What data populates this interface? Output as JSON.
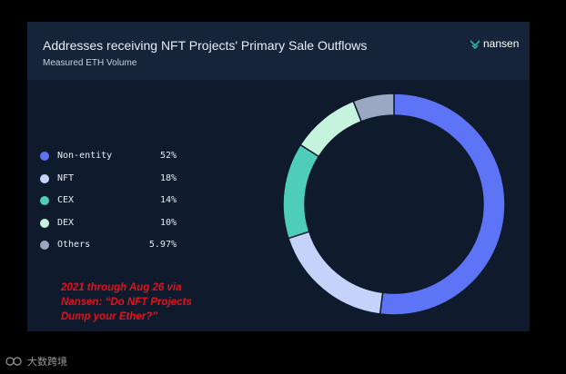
{
  "card": {
    "title": "Addresses receiving NFT Projects' Primary Sale Outflows",
    "subtitle": "Measured ETH Volume",
    "brand": "nansen",
    "brand_icon": "nansen-logo-icon"
  },
  "chart_data": {
    "type": "pie",
    "title": "Addresses receiving NFT Projects' Primary Sale Outflows",
    "subtitle": "Measured ETH Volume",
    "legend_position": "left",
    "donut": true,
    "categories": [
      "Non-entity",
      "NFT",
      "CEX",
      "DEX",
      "Others"
    ],
    "values": [
      52,
      18,
      14,
      10,
      5.97
    ],
    "value_labels": [
      "52%",
      "18%",
      "14%",
      "10%",
      "5.97%"
    ],
    "colors": [
      "#5c74f5",
      "#c5d3fb",
      "#4fcdbb",
      "#c6f3de",
      "#9aa8c4"
    ]
  },
  "annotation": {
    "lines": [
      "2021 through Aug 26 via",
      "Nansen: “Do NFT Projects",
      "Dump your Ether?”"
    ],
    "color": "#e0141e"
  },
  "footer": {
    "text": "大数跨境",
    "icon": "watermark-logo-icon"
  }
}
